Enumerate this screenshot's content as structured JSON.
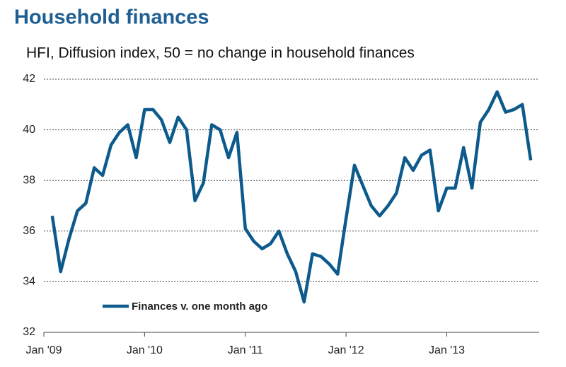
{
  "chart_data": {
    "type": "line",
    "title": "Household finances",
    "subtitle": "HFI, Diffusion index, 50 = no change in household finances",
    "x": [
      "2009-02",
      "2009-03",
      "2009-04",
      "2009-05",
      "2009-06",
      "2009-07",
      "2009-08",
      "2009-09",
      "2009-10",
      "2009-11",
      "2009-12",
      "2010-01",
      "2010-02",
      "2010-03",
      "2010-04",
      "2010-05",
      "2010-06",
      "2010-07",
      "2010-08",
      "2010-09",
      "2010-10",
      "2010-11",
      "2010-12",
      "2011-01",
      "2011-02",
      "2011-03",
      "2011-04",
      "2011-05",
      "2011-06",
      "2011-07",
      "2011-08",
      "2011-09",
      "2011-10",
      "2011-11",
      "2011-12",
      "2012-01",
      "2012-02",
      "2012-03",
      "2012-04",
      "2012-05",
      "2012-06",
      "2012-07",
      "2012-08",
      "2012-09",
      "2012-10",
      "2012-11",
      "2012-12",
      "2013-01",
      "2013-02",
      "2013-03",
      "2013-04",
      "2013-05",
      "2013-06",
      "2013-07",
      "2013-08",
      "2013-09",
      "2013-10",
      "2013-11"
    ],
    "series": [
      {
        "name": "Finances v. one month ago",
        "color": "#0d5a8c",
        "values": [
          36.6,
          34.4,
          35.7,
          36.8,
          37.1,
          38.5,
          38.2,
          39.4,
          39.9,
          40.2,
          38.9,
          40.8,
          40.8,
          40.4,
          39.5,
          40.5,
          40.0,
          37.2,
          37.9,
          40.2,
          40.0,
          38.9,
          39.9,
          36.1,
          35.6,
          35.3,
          35.5,
          36.0,
          35.1,
          34.4,
          33.2,
          35.1,
          35.0,
          34.7,
          34.3,
          36.5,
          38.6,
          37.8,
          37.0,
          36.6,
          37.0,
          37.5,
          38.9,
          38.4,
          39.0,
          39.2,
          36.8,
          37.7,
          37.7,
          39.3,
          37.7,
          40.3,
          40.8,
          41.5,
          40.7,
          40.8,
          41.0,
          38.8
        ]
      }
    ],
    "xlim": [
      "2009-01",
      "2013-12"
    ],
    "xticks": [
      {
        "value": "2009-01",
        "label": "Jan '09"
      },
      {
        "value": "2010-01",
        "label": "Jan '10"
      },
      {
        "value": "2011-01",
        "label": "Jan '11"
      },
      {
        "value": "2012-01",
        "label": "Jan '12"
      },
      {
        "value": "2013-01",
        "label": "Jan '13"
      }
    ],
    "ylim": [
      32,
      42
    ],
    "yticks": [
      32,
      34,
      36,
      38,
      40,
      42
    ],
    "grid": true,
    "legend": "lower-left"
  }
}
